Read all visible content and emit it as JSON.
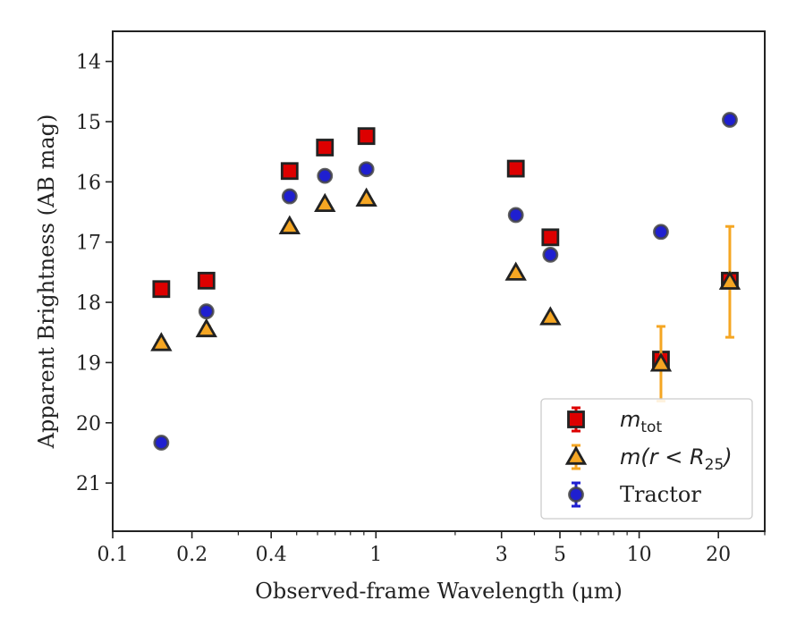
{
  "chart_data": {
    "type": "scatter",
    "xscale": "log",
    "xlim": [
      0.1,
      30
    ],
    "ylim": [
      21.8,
      13.5
    ],
    "y_inverted": true,
    "xlabel": "Observed-frame Wavelength (μm)",
    "ylabel": "Apparent Brightness (AB mag)",
    "x_ticks": [
      {
        "value": 0.1,
        "label": "0.1"
      },
      {
        "value": 0.2,
        "label": "0.2"
      },
      {
        "value": 0.4,
        "label": "0.4"
      },
      {
        "value": 1,
        "label": "1"
      },
      {
        "value": 3,
        "label": "3"
      },
      {
        "value": 5,
        "label": "5"
      },
      {
        "value": 10,
        "label": "10"
      },
      {
        "value": 20,
        "label": "20"
      }
    ],
    "x_minor_ticks": [
      0.3,
      0.5,
      0.6,
      0.7,
      0.8,
      0.9,
      2,
      4,
      6,
      7,
      8,
      9,
      30
    ],
    "y_ticks": [
      {
        "value": 14,
        "label": "14"
      },
      {
        "value": 15,
        "label": "15"
      },
      {
        "value": 16,
        "label": "16"
      },
      {
        "value": 17,
        "label": "17"
      },
      {
        "value": 18,
        "label": "18"
      },
      {
        "value": 19,
        "label": "19"
      },
      {
        "value": 20,
        "label": "20"
      },
      {
        "value": 21,
        "label": "21"
      }
    ],
    "grid": false,
    "legend_position": "lower-right",
    "series": [
      {
        "name": "m_tot",
        "legend_main": "m",
        "legend_sub": "tot",
        "marker": "square",
        "fill": "#dd0000",
        "edge": "#222222",
        "errcolor": "#dd0000",
        "points": [
          {
            "x": 0.153,
            "y": 17.78,
            "err": 0.04
          },
          {
            "x": 0.227,
            "y": 17.64,
            "err": 0.04
          },
          {
            "x": 0.47,
            "y": 15.82,
            "err": 0.03
          },
          {
            "x": 0.64,
            "y": 15.43,
            "err": 0.03
          },
          {
            "x": 0.92,
            "y": 15.24,
            "err": 0.03
          },
          {
            "x": 3.4,
            "y": 15.78,
            "err": 0.03
          },
          {
            "x": 4.6,
            "y": 16.92,
            "err": 0.03
          },
          {
            "x": 12.1,
            "y": 18.95,
            "err": 0.06
          },
          {
            "x": 22.1,
            "y": 17.64,
            "err": 0.06
          }
        ]
      },
      {
        "name": "m(r < R_25)",
        "legend_main": "m(r < R",
        "legend_sub": "25",
        "legend_tail": ")",
        "marker": "triangle",
        "fill": "#f5a623",
        "edge": "#222222",
        "errcolor": "#f5a623",
        "points": [
          {
            "x": 0.153,
            "y": 18.68,
            "err": 0.05
          },
          {
            "x": 0.227,
            "y": 18.45,
            "err": 0.05
          },
          {
            "x": 0.47,
            "y": 16.74,
            "err": 0.04
          },
          {
            "x": 0.64,
            "y": 16.37,
            "err": 0.04
          },
          {
            "x": 0.92,
            "y": 16.28,
            "err": 0.04
          },
          {
            "x": 3.4,
            "y": 17.51,
            "err": 0.04
          },
          {
            "x": 4.6,
            "y": 18.25,
            "err": 0.04
          },
          {
            "x": 12.1,
            "y": 19.02,
            "err": 0.62
          },
          {
            "x": 22.1,
            "y": 17.66,
            "err": 0.92
          }
        ]
      },
      {
        "name": "Tractor",
        "legend_main": "Tractor",
        "marker": "circle",
        "fill": "#1f1fd0",
        "edge": "#444444",
        "errcolor": "#1f1fd0",
        "points": [
          {
            "x": 0.153,
            "y": 20.33,
            "err": 0.05
          },
          {
            "x": 0.227,
            "y": 18.15,
            "err": 0.05
          },
          {
            "x": 0.47,
            "y": 16.24,
            "err": 0.05
          },
          {
            "x": 0.64,
            "y": 15.9,
            "err": 0.05
          },
          {
            "x": 0.92,
            "y": 15.79,
            "err": 0.05
          },
          {
            "x": 3.4,
            "y": 16.55,
            "err": 0.05
          },
          {
            "x": 4.6,
            "y": 17.21,
            "err": 0.05
          },
          {
            "x": 12.1,
            "y": 16.83,
            "err": 0.05
          },
          {
            "x": 22.1,
            "y": 14.97,
            "err": 0.05
          }
        ]
      }
    ]
  }
}
